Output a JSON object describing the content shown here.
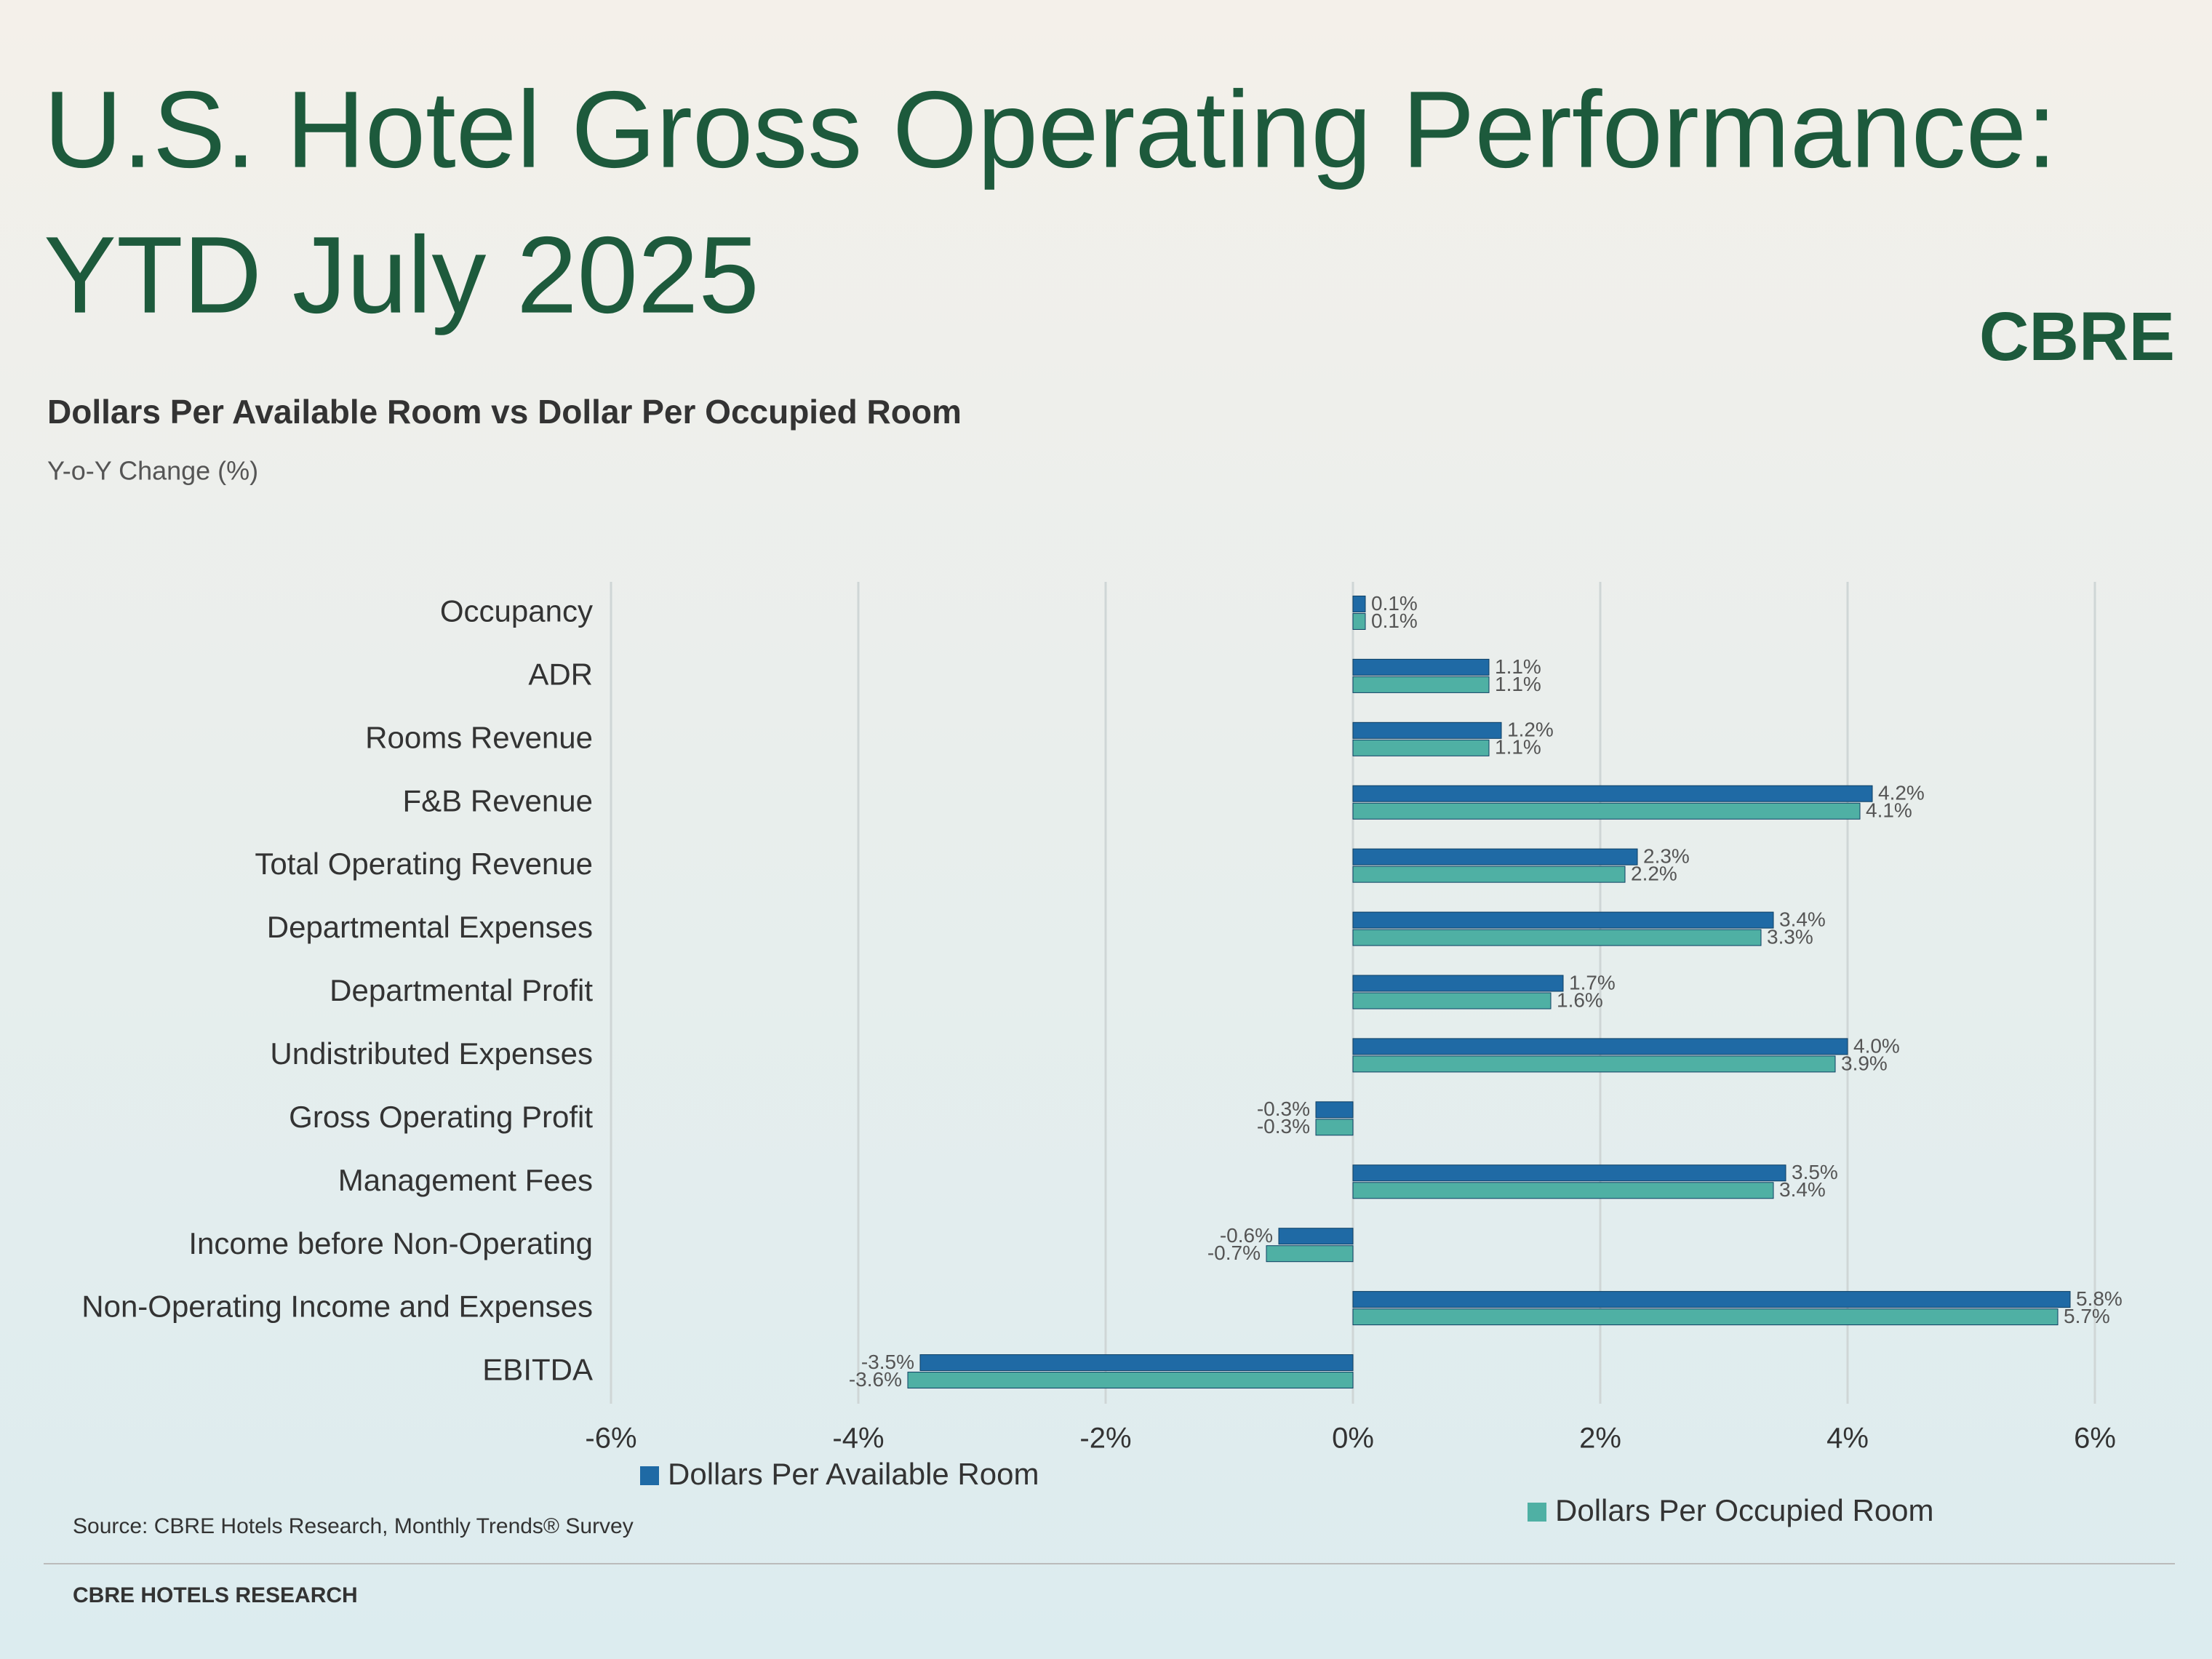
{
  "logo": "CBRE",
  "footer": "CBRE HOTELS RESEARCH",
  "chart_data": {
    "type": "barh",
    "title": [
      "U.S. Hotel Gross Operating Performance:",
      "YTD July 2025"
    ],
    "subtitle": "Dollars Per Available Room vs Dollar Per Occupied Room",
    "axis_label": "Y-o-Y Change (%)",
    "source": "Source: CBRE Hotels Research, Monthly Trends® Survey",
    "categories": [
      "Occupancy",
      "ADR",
      "Rooms Revenue",
      "F&B Revenue",
      "Total Operating Revenue",
      "Departmental Expenses",
      "Departmental Profit",
      "Undistributed Expenses",
      "Gross Operating Profit",
      "Management Fees",
      "Income before Non-Operating",
      "Non-Operating Income and Expenses",
      "EBITDA"
    ],
    "series": [
      {
        "name": "Dollars Per Available Room",
        "color": "#1f6aa5",
        "values": [
          0.1,
          1.1,
          1.2,
          4.2,
          2.3,
          3.4,
          1.7,
          4.0,
          -0.3,
          3.5,
          -0.6,
          5.8,
          -3.5
        ],
        "value_labels": [
          "0.1%",
          "1.1%",
          "1.2%",
          "4.2%",
          "2.3%",
          "3.4%",
          "1.7%",
          "4.0%",
          "-0.3%",
          "3.5%",
          "-0.6%",
          "5.8%",
          "-3.5%"
        ]
      },
      {
        "name": "Dollars Per Occupied Room",
        "color": "#4fb0a4",
        "values": [
          0.1,
          1.1,
          1.1,
          4.1,
          2.2,
          3.3,
          1.6,
          3.9,
          -0.3,
          3.4,
          -0.7,
          5.7,
          -3.6
        ],
        "value_labels": [
          "0.1%",
          "1.1%",
          "1.1%",
          "4.1%",
          "2.2%",
          "3.3%",
          "1.6%",
          "3.9%",
          "-0.3%",
          "3.4%",
          "-0.7%",
          "5.7%",
          "-3.6%"
        ]
      }
    ],
    "xlim": [
      -6,
      6
    ],
    "xticks": [
      {
        "value": -6,
        "label": "-6%"
      },
      {
        "value": -4,
        "label": "-4%"
      },
      {
        "value": -2,
        "label": "-2%"
      },
      {
        "value": 0,
        "label": "0%"
      },
      {
        "value": 2,
        "label": "2%"
      },
      {
        "value": 4,
        "label": "4%"
      },
      {
        "value": 6,
        "label": "6%"
      }
    ],
    "grid": true
  }
}
